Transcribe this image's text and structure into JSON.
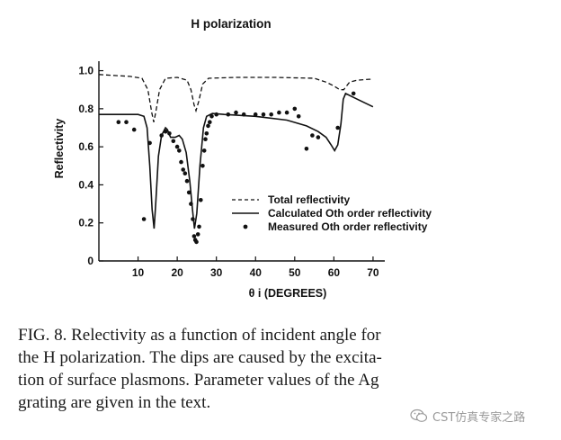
{
  "chart_data": {
    "type": "line",
    "title": "H polarization",
    "xlabel": "θ i (DEGREES)",
    "ylabel": "Reflectivity",
    "xlim": [
      0,
      73
    ],
    "ylim": [
      0,
      1.05
    ],
    "x_ticks": [
      10,
      20,
      30,
      40,
      50,
      60,
      70
    ],
    "y_ticks": [
      0,
      0.2,
      0.4,
      0.6,
      0.8,
      1.0
    ],
    "y_tick_labels": [
      "0",
      "0.2",
      "0.4",
      "0.6",
      "0.8",
      "1.0"
    ],
    "grid": false,
    "legend_position": "inside-lower-right",
    "series": [
      {
        "name": "Total reflectivity",
        "style": "dashed",
        "points": [
          [
            0,
            0.98
          ],
          [
            4,
            0.975
          ],
          [
            8,
            0.97
          ],
          [
            11,
            0.96
          ],
          [
            12.5,
            0.9
          ],
          [
            13.5,
            0.78
          ],
          [
            14,
            0.73
          ],
          [
            14.5,
            0.78
          ],
          [
            15.5,
            0.9
          ],
          [
            17,
            0.96
          ],
          [
            20,
            0.965
          ],
          [
            22.5,
            0.95
          ],
          [
            23.5,
            0.9
          ],
          [
            24.3,
            0.82
          ],
          [
            24.8,
            0.79
          ],
          [
            25.5,
            0.84
          ],
          [
            26.5,
            0.93
          ],
          [
            28,
            0.96
          ],
          [
            35,
            0.965
          ],
          [
            45,
            0.965
          ],
          [
            55,
            0.96
          ],
          [
            58,
            0.94
          ],
          [
            60,
            0.92
          ],
          [
            61.5,
            0.9
          ],
          [
            62.5,
            0.9
          ],
          [
            64,
            0.94
          ],
          [
            66,
            0.95
          ],
          [
            69,
            0.955
          ],
          [
            70,
            0.955
          ]
        ]
      },
      {
        "name": "Calculated Oth order reflectivity",
        "style": "solid",
        "points": [
          [
            0,
            0.77
          ],
          [
            5,
            0.77
          ],
          [
            10,
            0.77
          ],
          [
            11.5,
            0.76
          ],
          [
            12.3,
            0.7
          ],
          [
            13,
            0.5
          ],
          [
            13.6,
            0.27
          ],
          [
            14.1,
            0.17
          ],
          [
            14.5,
            0.3
          ],
          [
            15.2,
            0.55
          ],
          [
            16,
            0.66
          ],
          [
            17,
            0.7
          ],
          [
            17.5,
            0.69
          ],
          [
            18.3,
            0.65
          ],
          [
            19.5,
            0.65
          ],
          [
            20.5,
            0.66
          ],
          [
            21.3,
            0.64
          ],
          [
            22.3,
            0.57
          ],
          [
            23.2,
            0.42
          ],
          [
            23.9,
            0.27
          ],
          [
            24.4,
            0.17
          ],
          [
            25,
            0.25
          ],
          [
            25.8,
            0.5
          ],
          [
            26.7,
            0.7
          ],
          [
            27.5,
            0.76
          ],
          [
            29,
            0.775
          ],
          [
            32,
            0.77
          ],
          [
            40,
            0.76
          ],
          [
            48,
            0.74
          ],
          [
            53,
            0.71
          ],
          [
            56,
            0.68
          ],
          [
            58,
            0.65
          ],
          [
            59.3,
            0.61
          ],
          [
            60.2,
            0.58
          ],
          [
            61,
            0.61
          ],
          [
            61.8,
            0.72
          ],
          [
            62.4,
            0.85
          ],
          [
            63,
            0.88
          ],
          [
            66,
            0.85
          ],
          [
            70,
            0.81
          ]
        ]
      },
      {
        "name": "Measured Oth order reflectivity",
        "style": "markers",
        "points": [
          [
            5,
            0.73
          ],
          [
            7,
            0.73
          ],
          [
            9,
            0.69
          ],
          [
            11.5,
            0.22
          ],
          [
            13,
            0.62
          ],
          [
            16,
            0.66
          ],
          [
            17,
            0.68
          ],
          [
            18,
            0.67
          ],
          [
            19,
            0.63
          ],
          [
            20,
            0.6
          ],
          [
            20.5,
            0.58
          ],
          [
            21,
            0.52
          ],
          [
            21.5,
            0.48
          ],
          [
            22,
            0.46
          ],
          [
            22.5,
            0.42
          ],
          [
            23,
            0.36
          ],
          [
            23.5,
            0.3
          ],
          [
            24,
            0.22
          ],
          [
            24.3,
            0.13
          ],
          [
            24.6,
            0.11
          ],
          [
            24.9,
            0.1
          ],
          [
            25.3,
            0.14
          ],
          [
            25.6,
            0.18
          ],
          [
            26,
            0.32
          ],
          [
            26.5,
            0.5
          ],
          [
            26.9,
            0.58
          ],
          [
            27.2,
            0.64
          ],
          [
            27.5,
            0.67
          ],
          [
            27.9,
            0.71
          ],
          [
            28.3,
            0.73
          ],
          [
            28.8,
            0.76
          ],
          [
            30,
            0.77
          ],
          [
            33,
            0.77
          ],
          [
            35,
            0.78
          ],
          [
            37,
            0.77
          ],
          [
            40,
            0.77
          ],
          [
            42,
            0.77
          ],
          [
            44,
            0.77
          ],
          [
            46,
            0.78
          ],
          [
            48,
            0.78
          ],
          [
            50,
            0.8
          ],
          [
            51,
            0.76
          ],
          [
            53,
            0.59
          ],
          [
            54.5,
            0.66
          ],
          [
            56,
            0.65
          ],
          [
            61,
            0.7
          ],
          [
            65,
            0.88
          ]
        ]
      }
    ]
  },
  "caption": {
    "lines": [
      "FIG. 8.  Relectivity as a function of incident angle for",
      "the H polarization.  The dips are caused by the excita-",
      "tion of surface plasmons.  Parameter values of the Ag",
      "grating are given in the text."
    ]
  },
  "watermark": {
    "text": "CST仿真专家之路",
    "icon": "wechat-icon"
  }
}
